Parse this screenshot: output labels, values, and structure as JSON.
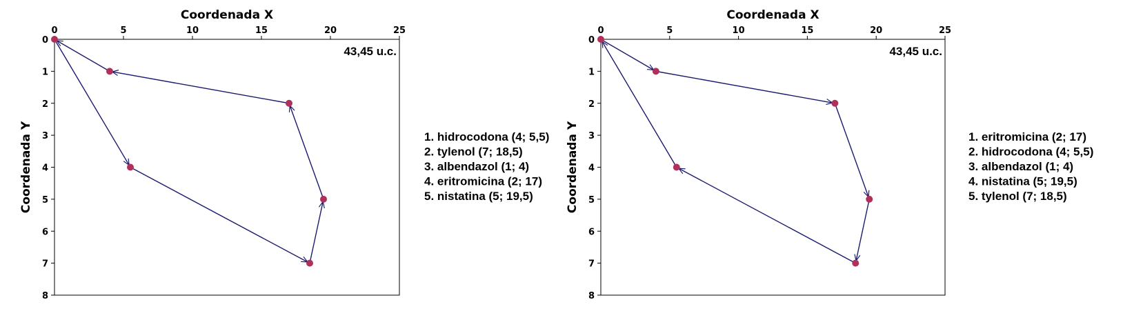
{
  "chart_data": [
    {
      "type": "scatter",
      "xlabel": "Coordenada X",
      "ylabel": "Coordenada Y",
      "xlim": [
        0,
        25
      ],
      "ylim": [
        0,
        8
      ],
      "y_inverted": true,
      "x_axis_position": "top",
      "xticks": [
        "0",
        "5",
        "10",
        "15",
        "20",
        "25"
      ],
      "yticks": [
        "0",
        "1",
        "2",
        "3",
        "4",
        "5",
        "6",
        "7",
        "8"
      ],
      "grid": false,
      "annotation": "43,45 u.c.",
      "legend_position": "right",
      "legend_items": [
        "1. hidrocodona (4; 5,5)",
        "2. tylenol (7; 18,5)",
        "3. albendazol (1; 4)",
        "4. eritromicina (2; 17)",
        "5. nistatina (5; 19,5)"
      ],
      "points": [
        {
          "x": 0,
          "y": 0
        },
        {
          "x": 4,
          "y": 1
        },
        {
          "x": 5.5,
          "y": 4
        },
        {
          "x": 17,
          "y": 2
        },
        {
          "x": 18.5,
          "y": 7
        },
        {
          "x": 19.5,
          "y": 5
        }
      ],
      "route": [
        {
          "x": 0,
          "y": 0
        },
        {
          "x": 5.5,
          "y": 4
        },
        {
          "x": 18.5,
          "y": 7
        },
        {
          "x": 19.5,
          "y": 5
        },
        {
          "x": 17,
          "y": 2
        },
        {
          "x": 4,
          "y": 1
        },
        {
          "x": 0,
          "y": 0
        }
      ],
      "colors": {
        "line": "#1a1a6e",
        "point": "#b0305a"
      }
    },
    {
      "type": "scatter",
      "xlabel": "Coordenada X",
      "ylabel": "Coordenada Y",
      "xlim": [
        0,
        25
      ],
      "ylim": [
        0,
        8
      ],
      "y_inverted": true,
      "x_axis_position": "top",
      "xticks": [
        "0",
        "5",
        "10",
        "15",
        "20",
        "25"
      ],
      "yticks": [
        "0",
        "1",
        "2",
        "3",
        "4",
        "5",
        "6",
        "7",
        "8"
      ],
      "grid": false,
      "annotation": "43,45 u.c.",
      "legend_position": "right",
      "legend_items": [
        "1. eritromicina (2; 17)",
        "2. hidrocodona (4; 5,5)",
        "3. albendazol (1; 4)",
        "4. nistatina (5; 19,5)",
        "5. tylenol (7; 18,5)"
      ],
      "points": [
        {
          "x": 0,
          "y": 0
        },
        {
          "x": 4,
          "y": 1
        },
        {
          "x": 5.5,
          "y": 4
        },
        {
          "x": 17,
          "y": 2
        },
        {
          "x": 18.5,
          "y": 7
        },
        {
          "x": 19.5,
          "y": 5
        }
      ],
      "route": [
        {
          "x": 0,
          "y": 0
        },
        {
          "x": 4,
          "y": 1
        },
        {
          "x": 17,
          "y": 2
        },
        {
          "x": 19.5,
          "y": 5
        },
        {
          "x": 18.5,
          "y": 7
        },
        {
          "x": 5.5,
          "y": 4
        },
        {
          "x": 0,
          "y": 0
        }
      ],
      "colors": {
        "line": "#1a1a6e",
        "point": "#b0305a"
      }
    }
  ]
}
